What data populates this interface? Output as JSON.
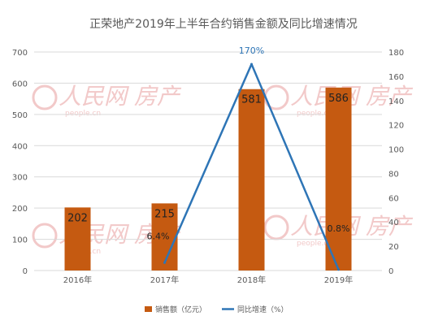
{
  "colors": {
    "bar": "#c55a11",
    "line": "#2e75b6",
    "axis_text": "#595959",
    "grid": "#d9d9d9",
    "watermark": "#f2c9c9"
  },
  "watermark": {
    "brand": "人民网 房产",
    "site": "people.cn"
  },
  "chart_data": {
    "type": "bar",
    "title": "正荣地产2019年上半年合约销售金额及同比增速情况",
    "categories": [
      "2016年",
      "2017年",
      "2018年",
      "2019年"
    ],
    "series": [
      {
        "name": "销售额（亿元）",
        "type": "bar",
        "axis": "left",
        "values": [
          202,
          215,
          581,
          586
        ],
        "labels": [
          "202",
          "215",
          "581",
          "586"
        ]
      },
      {
        "name": "同比增速（%）",
        "type": "line",
        "axis": "right",
        "values": [
          null,
          6.4,
          170,
          0.8
        ],
        "labels": [
          "",
          "6.4%",
          "170%",
          "0.8%"
        ]
      }
    ],
    "y_left": {
      "min": 0,
      "max": 700,
      "ticks": [
        "0",
        "100",
        "200",
        "300",
        "400",
        "500",
        "600",
        "700"
      ]
    },
    "y_right": {
      "min": 0,
      "max": 180,
      "ticks": [
        "0",
        "20",
        "40",
        "60",
        "80",
        "100",
        "120",
        "140",
        "160",
        "180"
      ]
    },
    "grid": true,
    "legend_position": "bottom"
  }
}
